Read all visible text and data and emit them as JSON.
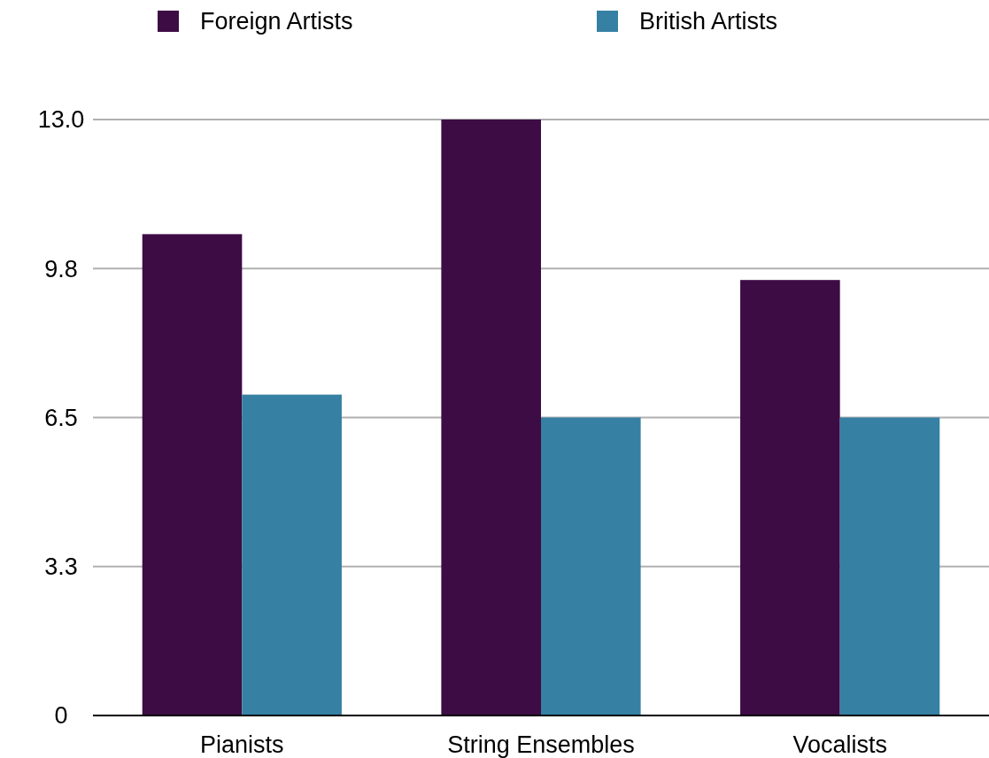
{
  "chart_data": {
    "type": "bar",
    "categories": [
      "Pianists",
      "String Ensembles",
      "Vocalists"
    ],
    "series": [
      {
        "name": "Foreign Artists",
        "color": "#3d0c45",
        "values": [
          10.5,
          13,
          9.5
        ]
      },
      {
        "name": "British Artists",
        "color": "#3680a3",
        "values": [
          7,
          6.5,
          6.5
        ]
      }
    ],
    "ylim": [
      0,
      13
    ],
    "yticks": [
      0,
      {
        "value": 3.25,
        "label": "3.3"
      },
      6.5,
      {
        "value": 9.75,
        "label": "9.8"
      },
      {
        "value": 13,
        "label": "13.0"
      }
    ],
    "grid": "y",
    "legend": "top"
  }
}
